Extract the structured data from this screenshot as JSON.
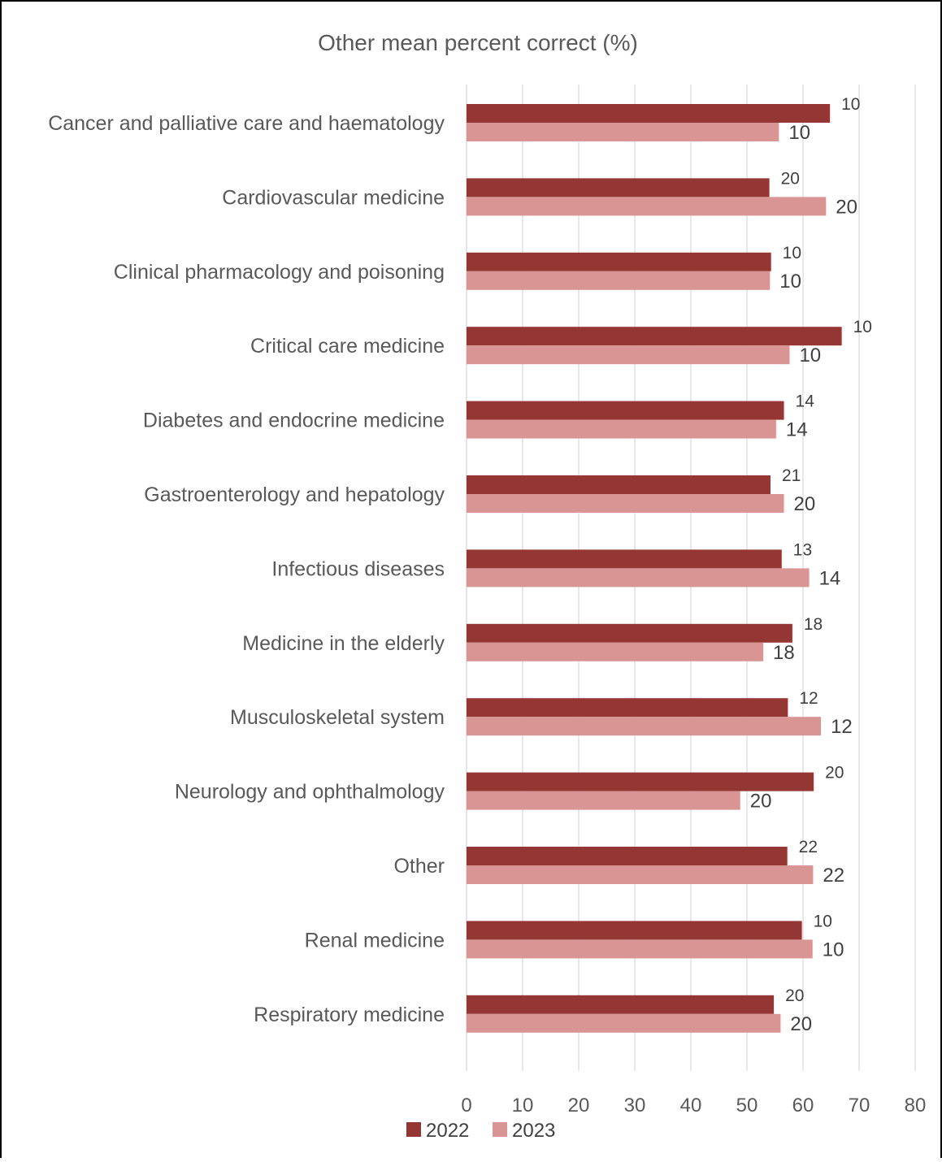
{
  "chart_data": {
    "type": "bar",
    "orientation": "horizontal",
    "title": "Other mean percent correct (%)",
    "xlabel": "",
    "ylabel": "",
    "xlim": [
      0,
      80
    ],
    "x_ticks": [
      "0",
      "10",
      "20",
      "30",
      "40",
      "50",
      "60",
      "70",
      "80"
    ],
    "grid": "vertical",
    "legend_position": "bottom",
    "categories": [
      "Cancer and palliative care and haematology",
      "Cardiovascular medicine",
      "Clinical pharmacology and poisoning",
      "Critical care medicine",
      "Diabetes and endocrine medicine",
      "Gastroenterology and hepatology",
      "Infectious diseases",
      "Medicine in the elderly",
      "Musculoskeletal system",
      "Neurology and ophthalmology",
      "Other",
      "Renal medicine",
      "Respiratory medicine"
    ],
    "series": [
      {
        "name": "2022",
        "color": "#943634",
        "values": [
          64.8,
          54.0,
          54.3,
          66.9,
          56.6,
          54.2,
          56.2,
          58.1,
          57.3,
          61.9,
          57.2,
          59.8,
          54.8
        ],
        "labels": [
          "10",
          "20",
          "10",
          "10",
          "14",
          "21",
          "13",
          "18",
          "12",
          "20",
          "22",
          "10",
          "20"
        ]
      },
      {
        "name": "2023",
        "color": "#d99594",
        "values": [
          55.7,
          64.1,
          54.1,
          57.6,
          55.2,
          56.6,
          61.1,
          52.9,
          63.2,
          48.8,
          61.8,
          61.7,
          56.0
        ],
        "labels": [
          "10",
          "20",
          "10",
          "10",
          "14",
          "20",
          "14",
          "18",
          "12",
          "20",
          "22",
          "10",
          "20"
        ]
      }
    ]
  }
}
